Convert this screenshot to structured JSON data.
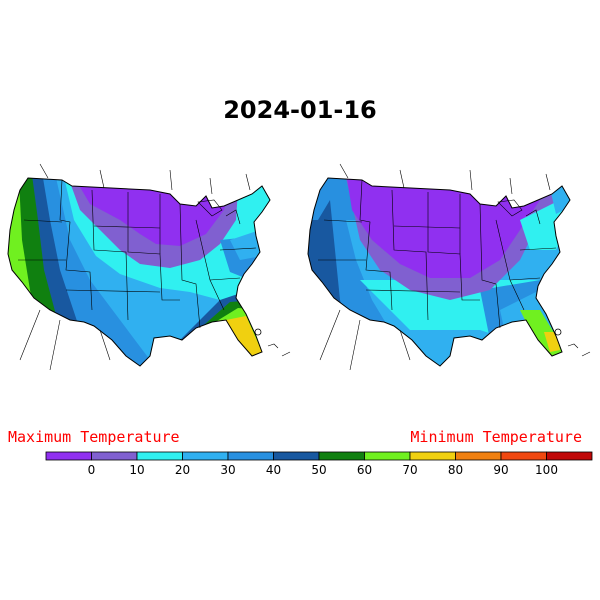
{
  "title": "2024-01-16",
  "labels": {
    "max": "Maximum Temperature",
    "min": "Minimum Temperature"
  },
  "legend": {
    "colors": [
      "#9030f0",
      "#8060d0",
      "#30f0f0",
      "#30b0f0",
      "#2890e0",
      "#1858a0",
      "#108010",
      "#70f020",
      "#f0d010",
      "#f08010",
      "#f04810",
      "#c00808"
    ],
    "ticks": [
      "0",
      "10",
      "20",
      "30",
      "40",
      "50",
      "60",
      "70",
      "80",
      "90",
      "100"
    ]
  }
}
